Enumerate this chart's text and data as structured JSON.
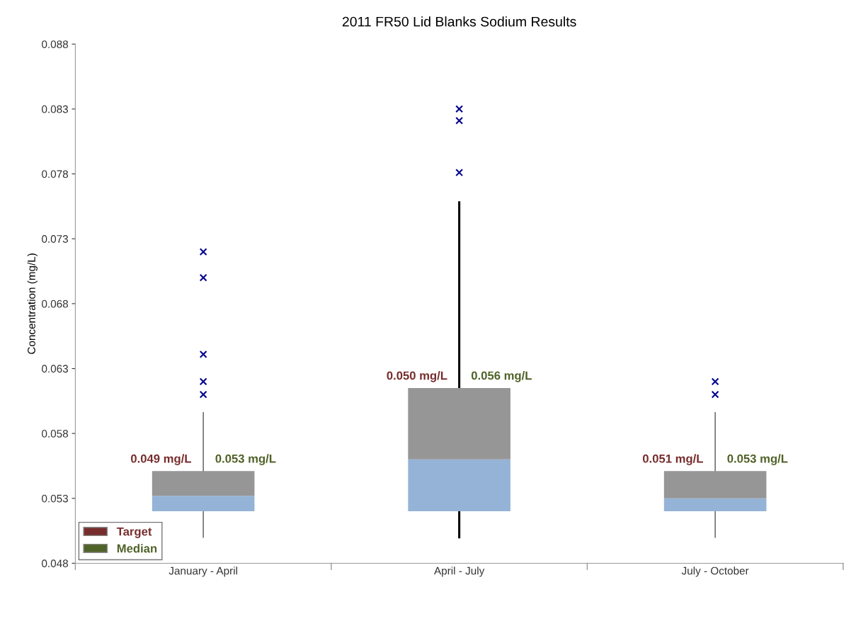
{
  "chart_data": {
    "type": "box",
    "title": "2011 FR50 Lid Blanks Sodium Results",
    "ylabel": "Concentration (mg/L)",
    "categories": [
      "January - April",
      "April - July",
      "July - October"
    ],
    "boxes": [
      {
        "low": 0.05,
        "q1": 0.052,
        "median": 0.0532,
        "q3": 0.0551,
        "high": 0.0596,
        "outliers": [
          0.072,
          0.07,
          0.0641,
          0.062,
          0.061
        ]
      },
      {
        "low": 0.05,
        "q1": 0.052,
        "median": 0.056,
        "q3": 0.0615,
        "high": 0.0758,
        "outliers": [
          0.083,
          0.0821,
          0.0781
        ]
      },
      {
        "low": 0.05,
        "q1": 0.052,
        "median": 0.053,
        "q3": 0.0551,
        "high": 0.0596,
        "outliers": [
          0.062,
          0.061
        ]
      }
    ],
    "series": [
      {
        "name": "Target",
        "color": "#772d2d",
        "values": [
          null,
          null,
          null
        ]
      },
      {
        "name": "Median",
        "color": "#4f6228",
        "values": [
          null,
          null,
          null
        ]
      }
    ],
    "annotations": [
      {
        "text": "0.049 mg/L",
        "x": "January - April",
        "y": 0.0551
      },
      {
        "text": "0.053 mg/L",
        "x": "January - April",
        "y": 0.0551
      },
      {
        "text": "0.050 mg/L",
        "x": "April - July",
        "y": 0.0615
      },
      {
        "text": "0.056 mg/L",
        "x": "April - July",
        "y": 0.0615
      },
      {
        "text": "0.051 mg/L",
        "x": "July - October",
        "y": 0.0551
      },
      {
        "text": "0.053 mg/L",
        "x": "July - October",
        "y": 0.0551
      }
    ],
    "ylim": [
      0.048,
      0.088
    ],
    "yticks": [
      {
        "value": 0.048,
        "label": "0.048"
      },
      {
        "value": 0.053,
        "label": "0.053"
      },
      {
        "value": 0.058,
        "label": "0.058"
      },
      {
        "value": 0.063,
        "label": "0.063"
      },
      {
        "value": 0.068,
        "label": "0.068"
      },
      {
        "value": 0.073,
        "label": "0.073"
      },
      {
        "value": 0.078,
        "label": "0.078"
      },
      {
        "value": 0.083,
        "label": "0.083"
      },
      {
        "value": 0.088,
        "label": "0.088"
      }
    ],
    "grid": false,
    "legend": "bottom left",
    "marker": "cross"
  }
}
